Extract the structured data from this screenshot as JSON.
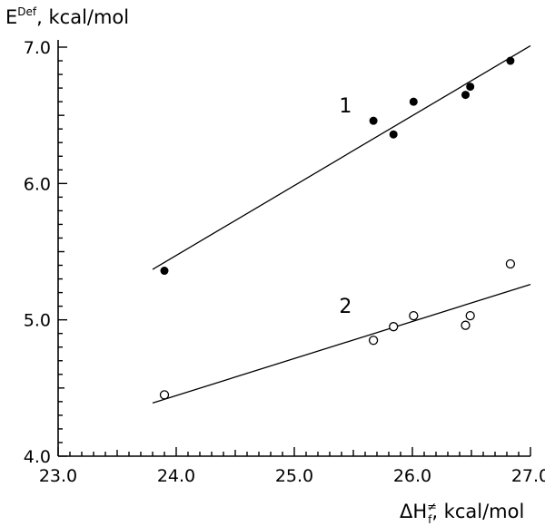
{
  "chart_data": {
    "type": "scatter",
    "title": "",
    "xlabel": {
      "main": "ΔH",
      "superscript": "≠",
      "subscript": "f",
      "unit": ",  kcal/mol"
    },
    "ylabel": {
      "main": "E",
      "superscript": "Def",
      "unit": ",  kcal/mol"
    },
    "xlim": [
      23.0,
      27.0
    ],
    "ylim": [
      4.0,
      7.0
    ],
    "x_ticks": [
      23.0,
      24.0,
      25.0,
      26.0,
      27.0
    ],
    "x_tick_labels": [
      "23.0",
      "24.0",
      "25.0",
      "26.0",
      "27.0"
    ],
    "y_ticks": [
      4.0,
      5.0,
      6.0,
      7.0
    ],
    "y_tick_labels": [
      "4.0",
      "5.0",
      "6.0",
      "7.0"
    ],
    "grid": false,
    "series": [
      {
        "label": "1",
        "marker": "filled-circle",
        "points": [
          {
            "x": 23.9,
            "y": 5.36
          },
          {
            "x": 25.67,
            "y": 6.46
          },
          {
            "x": 25.84,
            "y": 6.36
          },
          {
            "x": 26.01,
            "y": 6.6
          },
          {
            "x": 26.45,
            "y": 6.65
          },
          {
            "x": 26.49,
            "y": 6.71
          },
          {
            "x": 26.83,
            "y": 6.9
          }
        ],
        "fit_line": {
          "x": [
            23.8,
            27.0
          ],
          "y": [
            5.37,
            7.01
          ]
        },
        "label_position": {
          "x": 25.38,
          "y": 6.52
        }
      },
      {
        "label": "2",
        "marker": "open-circle",
        "points": [
          {
            "x": 23.9,
            "y": 4.45
          },
          {
            "x": 25.67,
            "y": 4.85
          },
          {
            "x": 25.84,
            "y": 4.95
          },
          {
            "x": 26.01,
            "y": 5.03
          },
          {
            "x": 26.45,
            "y": 4.96
          },
          {
            "x": 26.49,
            "y": 5.03
          },
          {
            "x": 26.83,
            "y": 5.41
          }
        ],
        "fit_line": {
          "x": [
            23.8,
            27.0
          ],
          "y": [
            4.39,
            5.26
          ]
        },
        "label_position": {
          "x": 25.38,
          "y": 5.05
        }
      }
    ]
  }
}
